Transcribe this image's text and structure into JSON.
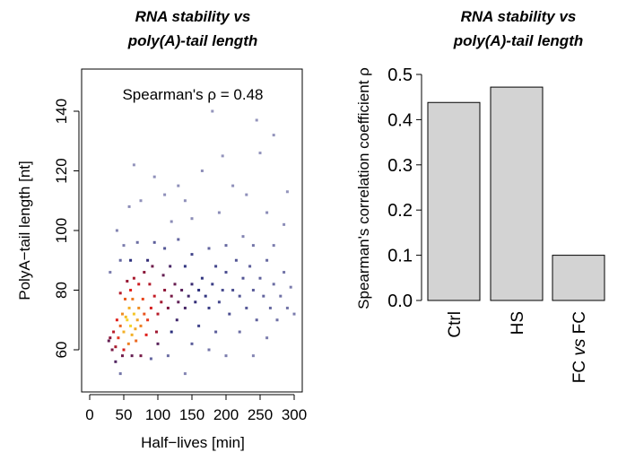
{
  "chart_data": [
    {
      "type": "scatter",
      "title": [
        "RNA stability  vs",
        "poly(A)-tail length"
      ],
      "xlabel": "Half−lives [min]",
      "ylabel": "PolyA−tail length [nt]",
      "annotation": "Spearman's ρ = 0.48",
      "xlim": [
        -5,
        310
      ],
      "ylim": [
        45,
        155
      ],
      "xticks": [
        0,
        50,
        100,
        150,
        200,
        250,
        300
      ],
      "yticks": [
        60,
        80,
        100,
        120,
        140
      ],
      "grid": false,
      "color_encoding": "point density (grey-blue low → navy → red → yellow high)",
      "colors": {
        "low": "#a3a3c6",
        "mid": "#2b2f7c",
        "high1": "#8a1538",
        "high2": "#e3221c",
        "peak": "#f7d42a"
      },
      "points": [
        [
          55,
          70,
          1.0
        ],
        [
          60,
          68,
          1.0
        ],
        [
          65,
          72,
          0.98
        ],
        [
          58,
          74,
          0.95
        ],
        [
          50,
          66,
          0.95
        ],
        [
          70,
          70,
          0.93
        ],
        [
          62,
          65,
          0.95
        ],
        [
          53,
          71,
          0.97
        ],
        [
          67,
          67,
          0.94
        ],
        [
          72,
          74,
          0.9
        ],
        [
          48,
          72,
          0.9
        ],
        [
          57,
          62,
          0.88
        ],
        [
          75,
          68,
          0.88
        ],
        [
          63,
          77,
          0.87
        ],
        [
          45,
          68,
          0.85
        ],
        [
          80,
          72,
          0.82
        ],
        [
          68,
          63,
          0.85
        ],
        [
          52,
          77,
          0.83
        ],
        [
          85,
          70,
          0.78
        ],
        [
          78,
          77,
          0.8
        ],
        [
          42,
          64,
          0.78
        ],
        [
          90,
          74,
          0.72
        ],
        [
          60,
          80,
          0.75
        ],
        [
          40,
          70,
          0.74
        ],
        [
          83,
          65,
          0.74
        ],
        [
          95,
          78,
          0.68
        ],
        [
          72,
          82,
          0.7
        ],
        [
          50,
          60,
          0.72
        ],
        [
          100,
          72,
          0.65
        ],
        [
          35,
          66,
          0.66
        ],
        [
          88,
          82,
          0.64
        ],
        [
          105,
          76,
          0.6
        ],
        [
          45,
          79,
          0.65
        ],
        [
          38,
          61,
          0.62
        ],
        [
          110,
          80,
          0.56
        ],
        [
          65,
          84,
          0.62
        ],
        [
          98,
          66,
          0.6
        ],
        [
          30,
          64,
          0.55
        ],
        [
          115,
          74,
          0.52
        ],
        [
          80,
          86,
          0.55
        ],
        [
          120,
          78,
          0.5
        ],
        [
          55,
          83,
          0.58
        ],
        [
          33,
          60,
          0.5
        ],
        [
          125,
          82,
          0.46
        ],
        [
          92,
          88,
          0.48
        ],
        [
          130,
          76,
          0.44
        ],
        [
          28,
          63,
          0.45
        ],
        [
          108,
          85,
          0.45
        ],
        [
          135,
          80,
          0.42
        ],
        [
          75,
          58,
          0.5
        ],
        [
          140,
          74,
          0.38
        ],
        [
          48,
          58,
          0.48
        ],
        [
          145,
          78,
          0.36
        ],
        [
          118,
          88,
          0.38
        ],
        [
          150,
          82,
          0.34
        ],
        [
          62,
          58,
          0.45
        ],
        [
          155,
          76,
          0.32
        ],
        [
          38,
          56,
          0.4
        ],
        [
          160,
          80,
          0.3
        ],
        [
          100,
          62,
          0.42
        ],
        [
          165,
          84,
          0.28
        ],
        [
          128,
          70,
          0.36
        ],
        [
          170,
          78,
          0.28
        ],
        [
          85,
          90,
          0.32
        ],
        [
          175,
          74,
          0.26
        ],
        [
          180,
          82,
          0.26
        ],
        [
          60,
          90,
          0.3
        ],
        [
          185,
          88,
          0.24
        ],
        [
          190,
          76,
          0.24
        ],
        [
          140,
          88,
          0.28
        ],
        [
          195,
          80,
          0.22
        ],
        [
          200,
          86,
          0.22
        ],
        [
          205,
          72,
          0.22
        ],
        [
          210,
          80,
          0.21
        ],
        [
          150,
          92,
          0.24
        ],
        [
          215,
          90,
          0.2
        ],
        [
          220,
          78,
          0.2
        ],
        [
          120,
          66,
          0.3
        ],
        [
          225,
          84,
          0.2
        ],
        [
          230,
          74,
          0.19
        ],
        [
          235,
          88,
          0.18
        ],
        [
          240,
          80,
          0.18
        ],
        [
          245,
          70,
          0.17
        ],
        [
          250,
          84,
          0.17
        ],
        [
          160,
          68,
          0.24
        ],
        [
          255,
          78,
          0.16
        ],
        [
          260,
          90,
          0.15
        ],
        [
          265,
          74,
          0.15
        ],
        [
          270,
          82,
          0.14
        ],
        [
          275,
          70,
          0.13
        ],
        [
          280,
          78,
          0.13
        ],
        [
          285,
          86,
          0.12
        ],
        [
          290,
          74,
          0.12
        ],
        [
          295,
          81,
          0.1
        ],
        [
          300,
          72,
          0.1
        ],
        [
          175,
          94,
          0.16
        ],
        [
          200,
          95,
          0.15
        ],
        [
          110,
          94,
          0.2
        ],
        [
          95,
          96,
          0.18
        ],
        [
          130,
          97,
          0.16
        ],
        [
          45,
          90,
          0.15
        ],
        [
          30,
          86,
          0.1
        ],
        [
          70,
          96,
          0.14
        ],
        [
          240,
          95,
          0.12
        ],
        [
          270,
          95,
          0.1
        ],
        [
          185,
          66,
          0.18
        ],
        [
          220,
          66,
          0.14
        ],
        [
          260,
          64,
          0.1
        ],
        [
          150,
          62,
          0.18
        ],
        [
          45,
          52,
          0.12
        ],
        [
          90,
          57,
          0.16
        ],
        [
          115,
          58,
          0.14
        ],
        [
          200,
          58,
          0.1
        ],
        [
          240,
          58,
          0.08
        ],
        [
          140,
          52,
          0.08
        ],
        [
          175,
          60,
          0.12
        ],
        [
          58,
          108,
          0.06
        ],
        [
          40,
          100,
          0.08
        ],
        [
          75,
          110,
          0.05
        ],
        [
          95,
          118,
          0.05
        ],
        [
          120,
          103,
          0.06
        ],
        [
          140,
          110,
          0.05
        ],
        [
          165,
          120,
          0.05
        ],
        [
          180,
          140,
          0.04
        ],
        [
          210,
          115,
          0.05
        ],
        [
          230,
          112,
          0.05
        ],
        [
          250,
          126,
          0.04
        ],
        [
          270,
          132,
          0.04
        ],
        [
          245,
          137,
          0.04
        ],
        [
          290,
          113,
          0.04
        ],
        [
          110,
          112,
          0.05
        ],
        [
          150,
          104,
          0.06
        ],
        [
          190,
          106,
          0.06
        ],
        [
          225,
          98,
          0.08
        ],
        [
          260,
          106,
          0.06
        ],
        [
          285,
          102,
          0.06
        ],
        [
          65,
          122,
          0.04
        ],
        [
          130,
          115,
          0.05
        ],
        [
          195,
          125,
          0.04
        ],
        [
          50,
          95,
          0.1
        ]
      ]
    },
    {
      "type": "bar",
      "title": [
        "RNA stability  vs",
        "poly(A)-tail length"
      ],
      "ylabel": "Spearman's correlation coefficient ρ",
      "xlabel": "",
      "categories": [
        "Ctrl",
        "HS",
        "FC vs FC"
      ],
      "values": [
        0.438,
        0.472,
        0.1
      ],
      "ylim": [
        0,
        0.5
      ],
      "yticks": [
        "0.0",
        "0.1",
        "0.2",
        "0.3",
        "0.4",
        "0.5"
      ],
      "bar_color": "#d3d3d3",
      "grid": false
    }
  ]
}
